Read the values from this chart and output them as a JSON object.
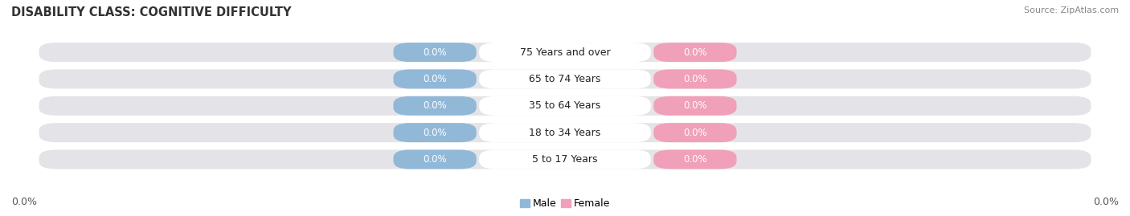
{
  "title": "DISABILITY CLASS: COGNITIVE DIFFICULTY",
  "source": "Source: ZipAtlas.com",
  "categories": [
    "5 to 17 Years",
    "18 to 34 Years",
    "35 to 64 Years",
    "65 to 74 Years",
    "75 Years and over"
  ],
  "male_values": [
    0.0,
    0.0,
    0.0,
    0.0,
    0.0
  ],
  "female_values": [
    0.0,
    0.0,
    0.0,
    0.0,
    0.0
  ],
  "male_color": "#92b8d8",
  "female_color": "#f0a0b8",
  "bar_bg_color": "#e4e4e8",
  "label_bg_color": "#ffffff",
  "bar_height": 0.72,
  "title_fontsize": 10.5,
  "label_fontsize": 9,
  "value_fontsize": 8.5,
  "tick_fontsize": 9,
  "background_color": "#ffffff",
  "left_label": "0.0%",
  "right_label": "0.0%",
  "male_label": "Male",
  "female_label": "Female"
}
